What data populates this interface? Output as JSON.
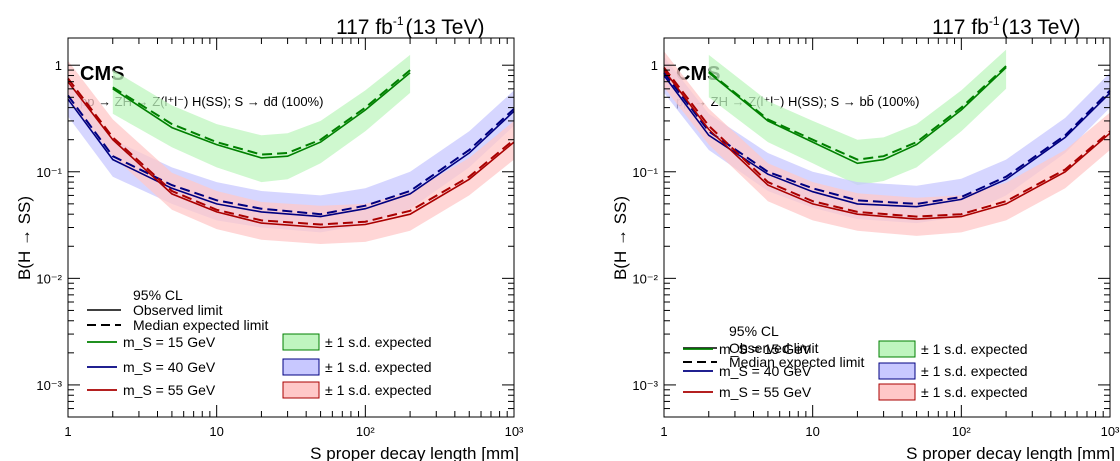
{
  "chart_data": [
    {
      "type": "line",
      "lumi": "117 fb",
      "lumi_exp": "-1",
      "energy": "(13 TeV)",
      "experiment": "CMS",
      "process": "pp → ZH → Z(l⁺l⁻) H(SS); S → dd̄ (100%)",
      "xlabel": "S proper decay length [mm]",
      "ylabel": "B(H → SS)",
      "xscale": "log",
      "yscale": "log",
      "xlim": [
        1,
        1000
      ],
      "ylim": [
        0.0005,
        1.8
      ],
      "x_ticks": [
        "1",
        "10",
        "10²",
        "10³"
      ],
      "y_ticks": [
        "10⁻³",
        "10⁻²",
        "10⁻¹",
        "1"
      ],
      "legend_title": "95% CL",
      "legend_observed": "Observed limit",
      "legend_expected": "Median expected limit",
      "band_label": "± 1 s.d. expected",
      "series": [
        {
          "name": "m_S = 15 GeV",
          "color": "#008000",
          "band": "#bff5bf",
          "x": [
            2,
            5,
            10,
            20,
            30,
            50,
            100,
            200
          ],
          "observed": [
            0.6,
            0.26,
            0.18,
            0.135,
            0.14,
            0.19,
            0.38,
            0.85
          ],
          "expected": [
            0.62,
            0.28,
            0.19,
            0.145,
            0.15,
            0.2,
            0.4,
            0.9
          ],
          "band_lo": [
            0.35,
            0.17,
            0.11,
            0.08,
            0.085,
            0.12,
            0.24,
            0.55
          ],
          "band_hi": [
            0.9,
            0.42,
            0.28,
            0.22,
            0.23,
            0.3,
            0.58,
            1.25
          ]
        },
        {
          "name": "m_S = 40 GeV",
          "color": "#000080",
          "band": "#c8c8ff",
          "x": [
            1,
            2,
            5,
            10,
            20,
            50,
            100,
            200,
            500,
            1000
          ],
          "observed": [
            0.48,
            0.13,
            0.07,
            0.05,
            0.042,
            0.038,
            0.045,
            0.062,
            0.15,
            0.37
          ],
          "expected": [
            0.52,
            0.14,
            0.075,
            0.054,
            0.045,
            0.04,
            0.048,
            0.066,
            0.16,
            0.39
          ],
          "band_lo": [
            0.33,
            0.09,
            0.05,
            0.035,
            0.03,
            0.027,
            0.032,
            0.045,
            0.11,
            0.27
          ],
          "band_hi": [
            0.75,
            0.2,
            0.11,
            0.08,
            0.066,
            0.06,
            0.07,
            0.1,
            0.24,
            0.58
          ]
        },
        {
          "name": "m_S = 55 GeV",
          "color": "#aa0000",
          "band": "#ffc8c8",
          "x": [
            1,
            2,
            5,
            10,
            20,
            50,
            100,
            200,
            500,
            1000
          ],
          "observed": [
            0.7,
            0.2,
            0.062,
            0.042,
            0.033,
            0.03,
            0.032,
            0.04,
            0.085,
            0.19
          ],
          "expected": [
            0.75,
            0.21,
            0.066,
            0.044,
            0.035,
            0.032,
            0.034,
            0.043,
            0.09,
            0.2
          ],
          "band_lo": [
            0.48,
            0.14,
            0.044,
            0.029,
            0.023,
            0.021,
            0.022,
            0.028,
            0.06,
            0.13
          ],
          "band_hi": [
            1.1,
            0.31,
            0.098,
            0.066,
            0.052,
            0.048,
            0.05,
            0.064,
            0.135,
            0.3
          ]
        }
      ]
    },
    {
      "type": "line",
      "lumi": "117 fb",
      "lumi_exp": "-1",
      "energy": "(13 TeV)",
      "experiment": "CMS",
      "process": "pp → ZH → Z(l⁺l⁻) H(SS); S → bb̄ (100%)",
      "xlabel": "S proper decay length [mm]",
      "ylabel": "B(H → SS)",
      "xscale": "log",
      "yscale": "log",
      "xlim": [
        1,
        1000
      ],
      "ylim": [
        0.0005,
        1.8
      ],
      "x_ticks": [
        "1",
        "10",
        "10²",
        "10³"
      ],
      "y_ticks": [
        "10⁻³",
        "10⁻²",
        "10⁻¹",
        "1"
      ],
      "legend_title": "95% CL",
      "legend_observed": "Observed limit",
      "legend_expected": "Median expected limit",
      "band_label": "± 1 s.d. expected",
      "series": [
        {
          "name": "m_S = 15 GeV",
          "color": "#008000",
          "band": "#bff5bf",
          "x": [
            2,
            5,
            10,
            20,
            30,
            50,
            100,
            200
          ],
          "observed": [
            0.85,
            0.3,
            0.19,
            0.12,
            0.13,
            0.18,
            0.38,
            0.95
          ],
          "expected": [
            0.87,
            0.31,
            0.2,
            0.13,
            0.14,
            0.19,
            0.4,
            0.98
          ],
          "band_lo": [
            0.5,
            0.19,
            0.12,
            0.075,
            0.082,
            0.11,
            0.24,
            0.6
          ],
          "band_hi": [
            1.25,
            0.46,
            0.3,
            0.2,
            0.21,
            0.28,
            0.58,
            1.4
          ]
        },
        {
          "name": "m_S = 40 GeV",
          "color": "#000080",
          "band": "#c8c8ff",
          "x": [
            1,
            2,
            5,
            10,
            20,
            50,
            100,
            200,
            500,
            1000
          ],
          "observed": [
            0.8,
            0.22,
            0.095,
            0.065,
            0.05,
            0.047,
            0.055,
            0.085,
            0.21,
            0.55
          ],
          "expected": [
            0.85,
            0.24,
            0.1,
            0.07,
            0.054,
            0.05,
            0.058,
            0.09,
            0.22,
            0.58
          ],
          "band_lo": [
            0.55,
            0.16,
            0.066,
            0.046,
            0.036,
            0.033,
            0.038,
            0.06,
            0.15,
            0.4
          ],
          "band_hi": [
            1.2,
            0.35,
            0.15,
            0.1,
            0.08,
            0.074,
            0.086,
            0.13,
            0.32,
            0.85
          ]
        },
        {
          "name": "m_S = 55 GeV",
          "color": "#aa0000",
          "band": "#ffc8c8",
          "x": [
            1,
            2,
            5,
            10,
            20,
            50,
            100,
            200,
            500,
            1000
          ],
          "observed": [
            0.9,
            0.25,
            0.075,
            0.05,
            0.04,
            0.036,
            0.038,
            0.05,
            0.1,
            0.23
          ],
          "expected": [
            0.95,
            0.27,
            0.08,
            0.053,
            0.042,
            0.038,
            0.04,
            0.053,
            0.105,
            0.24
          ],
          "band_lo": [
            0.62,
            0.18,
            0.053,
            0.035,
            0.028,
            0.025,
            0.027,
            0.035,
            0.07,
            0.16
          ],
          "band_hi": [
            1.35,
            0.39,
            0.12,
            0.08,
            0.063,
            0.057,
            0.06,
            0.079,
            0.16,
            0.36
          ]
        }
      ]
    }
  ]
}
